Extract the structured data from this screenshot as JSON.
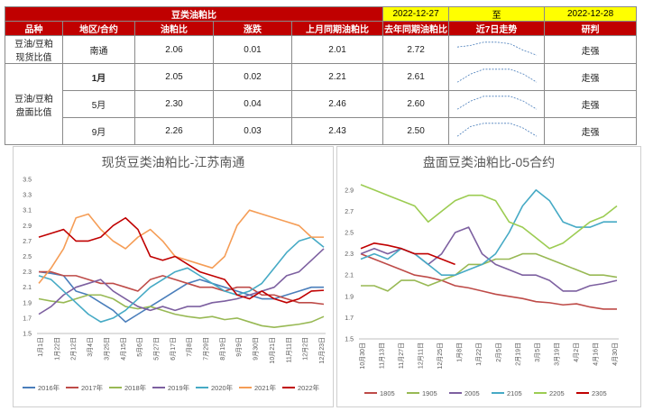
{
  "table": {
    "title": "豆类油粕比",
    "date_from": "2022-12-27",
    "date_sep": "至",
    "date_to": "2022-12-28",
    "headers": [
      "品种",
      "地区/合约",
      "油粕比",
      "涨跌",
      "上月同期油粕比",
      "去年同期油粕比",
      "近7日走势",
      "研判"
    ],
    "group1": "豆油/豆粕\n现货比值",
    "group2": "豆油/豆粕\n盘面比值",
    "rows": [
      {
        "name": "南通",
        "ratio": "2.06",
        "chg": "0.01",
        "lm": "2.01",
        "ly": "2.72",
        "trend": [
          0.6,
          0.7,
          0.9,
          0.9,
          0.8,
          0.4,
          0.1
        ],
        "judge": "走强"
      },
      {
        "name": "1月",
        "ratio": "2.05",
        "chg": "0.02",
        "lm": "2.21",
        "ly": "2.61",
        "trend": [
          0.1,
          0.6,
          0.9,
          0.9,
          0.9,
          0.6,
          0.1
        ],
        "judge": "走强"
      },
      {
        "name": "5月",
        "ratio": "2.30",
        "chg": "0.04",
        "lm": "2.46",
        "ly": "2.60",
        "trend": [
          0.1,
          0.6,
          0.9,
          0.9,
          0.9,
          0.6,
          0.1
        ],
        "judge": "走强"
      },
      {
        "name": "9月",
        "ratio": "2.26",
        "chg": "0.03",
        "lm": "2.43",
        "ly": "2.50",
        "trend": [
          0.1,
          0.7,
          0.9,
          0.9,
          0.9,
          0.6,
          0.1
        ],
        "judge": "走强"
      }
    ]
  },
  "chart_data": [
    {
      "type": "line",
      "title": "现货豆类油粕比-江苏南通",
      "ylim": [
        1.5,
        3.5
      ],
      "yticks": [
        "1.5",
        "1.7",
        "1.9",
        "2.1",
        "2.3",
        "2.5",
        "2.7",
        "2.9",
        "3.1",
        "3.3",
        "3.5"
      ],
      "xticks": [
        "1月1日",
        "1月22日",
        "2月12日",
        "3月4日",
        "3月25日",
        "4月15日",
        "5月6日",
        "5月27日",
        "6月17日",
        "7月8日",
        "7月29日",
        "8月19日",
        "9月9日",
        "9月30日",
        "10月21日",
        "11月11日",
        "12月2日",
        "12月23日"
      ],
      "series": [
        {
          "name": "2016年",
          "color": "#4a7ebb",
          "values": [
            2.3,
            2.28,
            2.25,
            2.05,
            2.0,
            1.9,
            1.8,
            1.65,
            1.75,
            1.85,
            1.95,
            2.05,
            2.15,
            2.2,
            2.15,
            2.1,
            2.05,
            2.0,
            1.95,
            1.95,
            2.0,
            2.05,
            2.1,
            2.1
          ]
        },
        {
          "name": "2017年",
          "color": "#be4b48",
          "values": [
            2.3,
            2.3,
            2.25,
            2.25,
            2.2,
            2.15,
            2.15,
            2.1,
            2.05,
            2.2,
            2.25,
            2.2,
            2.15,
            2.1,
            2.1,
            2.05,
            2.1,
            2.1,
            2.0,
            2.0,
            1.95,
            1.9,
            1.9,
            1.88
          ]
        },
        {
          "name": "2018年",
          "color": "#98b954",
          "values": [
            1.95,
            1.92,
            1.9,
            1.95,
            2.0,
            2.0,
            1.95,
            1.85,
            1.82,
            1.85,
            1.8,
            1.75,
            1.72,
            1.7,
            1.72,
            1.68,
            1.7,
            1.65,
            1.6,
            1.58,
            1.6,
            1.62,
            1.65,
            1.72
          ]
        },
        {
          "name": "2019年",
          "color": "#7d60a0",
          "values": [
            1.75,
            1.85,
            2.0,
            2.1,
            2.15,
            2.2,
            2.05,
            1.95,
            1.85,
            1.8,
            1.85,
            1.8,
            1.85,
            1.85,
            1.9,
            1.92,
            1.95,
            2.0,
            2.05,
            2.1,
            2.25,
            2.3,
            2.45,
            2.6
          ]
        },
        {
          "name": "2020年",
          "color": "#46aac5",
          "values": [
            2.25,
            2.2,
            2.05,
            1.9,
            1.75,
            1.65,
            1.7,
            1.8,
            1.95,
            2.1,
            2.2,
            2.3,
            2.35,
            2.25,
            2.15,
            2.05,
            2.0,
            2.05,
            2.15,
            2.35,
            2.55,
            2.7,
            2.75,
            2.62
          ]
        },
        {
          "name": "2021年",
          "color": "#f59d56",
          "values": [
            2.15,
            2.35,
            2.6,
            3.0,
            3.05,
            2.85,
            2.7,
            2.6,
            2.75,
            2.85,
            2.7,
            2.5,
            2.45,
            2.4,
            2.35,
            2.5,
            2.9,
            3.1,
            3.05,
            3.0,
            2.95,
            2.9,
            2.75,
            2.75
          ]
        },
        {
          "name": "2022年",
          "color": "#c00000",
          "values": [
            2.75,
            2.8,
            2.85,
            2.7,
            2.7,
            2.75,
            2.9,
            3.0,
            2.85,
            2.5,
            2.45,
            2.5,
            2.4,
            2.3,
            2.25,
            2.2,
            2.0,
            1.95,
            2.05,
            1.95,
            1.9,
            1.95,
            2.05,
            2.06
          ]
        }
      ]
    },
    {
      "type": "line",
      "title": "盘面豆类油粕比-05合约",
      "ylim": [
        1.5,
        3.0
      ],
      "yticks": [
        "1.5",
        "1.7",
        "1.9",
        "2.1",
        "2.3",
        "2.5",
        "2.7",
        "2.9"
      ],
      "xticks": [
        "10月30日",
        "11月13日",
        "11月27日",
        "12月11日",
        "12月25日",
        "1月8日",
        "1月22日",
        "2月5日",
        "2月19日",
        "3月5日",
        "3月19日",
        "4月2日",
        "4月16日",
        "4月30日"
      ],
      "series": [
        {
          "name": "1805",
          "color": "#be4b48",
          "values": [
            2.3,
            2.25,
            2.2,
            2.15,
            2.1,
            2.08,
            2.05,
            2.0,
            1.98,
            1.95,
            1.92,
            1.9,
            1.88,
            1.85,
            1.84,
            1.82,
            1.83,
            1.8,
            1.78,
            1.78
          ]
        },
        {
          "name": "1905",
          "color": "#98b954",
          "values": [
            2.0,
            2.0,
            1.95,
            2.05,
            2.05,
            2.0,
            2.05,
            2.1,
            2.2,
            2.2,
            2.25,
            2.25,
            2.3,
            2.3,
            2.25,
            2.2,
            2.15,
            2.1,
            2.1,
            2.08
          ]
        },
        {
          "name": "2005",
          "color": "#7d60a0",
          "values": [
            2.3,
            2.35,
            2.3,
            2.35,
            2.3,
            2.2,
            2.3,
            2.5,
            2.55,
            2.3,
            2.2,
            2.15,
            2.1,
            2.1,
            2.05,
            1.95,
            1.95,
            2.0,
            2.02,
            2.05
          ]
        },
        {
          "name": "2105",
          "color": "#46aac5",
          "values": [
            2.25,
            2.3,
            2.25,
            2.35,
            2.3,
            2.2,
            2.1,
            2.1,
            2.15,
            2.2,
            2.3,
            2.5,
            2.75,
            2.9,
            2.8,
            2.6,
            2.55,
            2.55,
            2.6,
            2.6
          ]
        },
        {
          "name": "2205",
          "color": "#9ccc52",
          "values": [
            2.95,
            2.9,
            2.85,
            2.8,
            2.75,
            2.6,
            2.7,
            2.8,
            2.85,
            2.85,
            2.8,
            2.6,
            2.55,
            2.45,
            2.35,
            2.4,
            2.5,
            2.6,
            2.65,
            2.75
          ]
        },
        {
          "name": "2305",
          "color": "#c00000",
          "values": [
            2.35,
            2.4,
            2.38,
            2.35,
            2.3,
            2.3,
            2.25,
            2.2
          ]
        }
      ]
    }
  ]
}
